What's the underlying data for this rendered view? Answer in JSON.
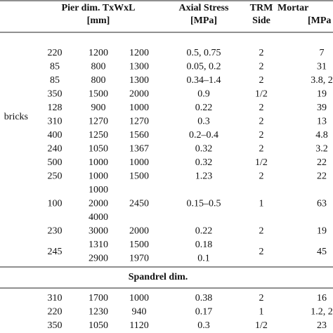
{
  "header": {
    "pier_dim": "Pier dim. TxWxL",
    "pier_unit": "[mm]",
    "stress": "Axial Stress",
    "stress_unit": "[MPa]",
    "trm": "TRM",
    "trm_side": "Side",
    "mortar": "Mortar",
    "mortar_unit": "[MPa"
  },
  "group_label": "bricks",
  "pier_rows": [
    [
      [
        "220"
      ],
      [
        "1200"
      ],
      [
        "1200"
      ],
      [
        "0.5, 0.75"
      ],
      [
        "2"
      ],
      [
        "7"
      ]
    ],
    [
      [
        "85"
      ],
      [
        "800"
      ],
      [
        "1300"
      ],
      [
        "0.05, 0.2"
      ],
      [
        "2"
      ],
      [
        "31"
      ]
    ],
    [
      [
        "85"
      ],
      [
        "800"
      ],
      [
        "1300"
      ],
      [
        "0.34–1.4"
      ],
      [
        "2"
      ],
      [
        "3.8, 2"
      ]
    ],
    [
      [
        "350"
      ],
      [
        "1500"
      ],
      [
        "2000"
      ],
      [
        "0.9"
      ],
      [
        "1/2"
      ],
      [
        "19"
      ]
    ],
    [
      [
        "128"
      ],
      [
        "900"
      ],
      [
        "1000"
      ],
      [
        "0.22"
      ],
      [
        "2"
      ],
      [
        "39"
      ]
    ],
    [
      [
        "310"
      ],
      [
        "1270"
      ],
      [
        "1270"
      ],
      [
        "0.3"
      ],
      [
        "2"
      ],
      [
        "13"
      ]
    ],
    [
      [
        "400"
      ],
      [
        "1250"
      ],
      [
        "1560"
      ],
      [
        "0.2–0.4"
      ],
      [
        "2"
      ],
      [
        "4.8"
      ]
    ],
    [
      [
        "240"
      ],
      [
        "1050"
      ],
      [
        "1367"
      ],
      [
        "0.32"
      ],
      [
        "2"
      ],
      [
        "3.2"
      ]
    ],
    [
      [
        "500"
      ],
      [
        "1000"
      ],
      [
        "1000"
      ],
      [
        "0.32"
      ],
      [
        "1/2"
      ],
      [
        "22"
      ]
    ],
    [
      [
        "250"
      ],
      [
        "1000"
      ],
      [
        "1500"
      ],
      [
        "1.23"
      ],
      [
        "2"
      ],
      [
        "22"
      ]
    ],
    [
      [
        "100"
      ],
      [
        "1000",
        "2000",
        "4000"
      ],
      [
        "2450"
      ],
      [
        "0.15–0.5"
      ],
      [
        "1"
      ],
      [
        "63"
      ]
    ],
    [
      [
        "230"
      ],
      [
        "3000"
      ],
      [
        "2000"
      ],
      [
        "0.22"
      ],
      [
        "2"
      ],
      [
        "19"
      ]
    ],
    [
      [
        "245"
      ],
      [
        "1310",
        "2900"
      ],
      [
        "1500",
        "1970"
      ],
      [
        "0.18",
        "0.1"
      ],
      [
        "2"
      ],
      [
        "45"
      ]
    ]
  ],
  "spandrel_title": "Spandrel dim.",
  "spandrel_rows": [
    [
      [
        "310"
      ],
      [
        "1700"
      ],
      [
        "1000"
      ],
      [
        "0.38"
      ],
      [
        "2"
      ],
      [
        "16"
      ]
    ],
    [
      [
        "220"
      ],
      [
        "1230"
      ],
      [
        "940"
      ],
      [
        "0.17"
      ],
      [
        "1"
      ],
      [
        "1.2, 2"
      ]
    ],
    [
      [
        "350"
      ],
      [
        "1050"
      ],
      [
        "1120"
      ],
      [
        "0.3"
      ],
      [
        "1/2"
      ],
      [
        "23"
      ]
    ]
  ]
}
